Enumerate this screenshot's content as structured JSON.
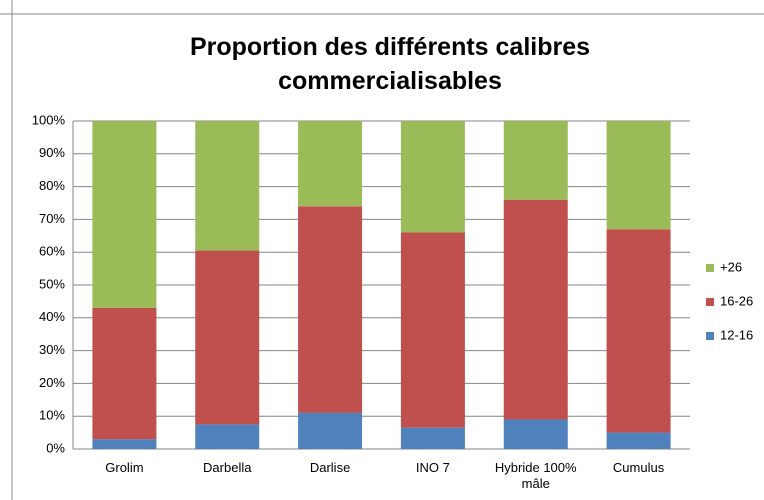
{
  "chart_data": {
    "type": "stacked_bar",
    "title": "Proportion des différents calibres commercialisables",
    "categories": [
      "Grolim",
      "Darbella",
      "Darlise",
      "INO 7",
      "Hybride 100% mâle",
      "Cumulus"
    ],
    "series": [
      {
        "name": "12-16",
        "color": "#4f81bd",
        "values": [
          3,
          7.5,
          11,
          6.5,
          9,
          5
        ]
      },
      {
        "name": "16-26",
        "color": "#c0504d",
        "values": [
          40,
          53,
          63,
          59.5,
          67,
          62
        ]
      },
      {
        "name": "+26",
        "color": "#9bbb59",
        "values": [
          57,
          39.5,
          26,
          34,
          24,
          33
        ]
      }
    ],
    "ylim": [
      0,
      100
    ],
    "yticks": [
      {
        "value": 0,
        "label": "0%"
      },
      {
        "value": 10,
        "label": "10%"
      },
      {
        "value": 20,
        "label": "20%"
      },
      {
        "value": 30,
        "label": "30%"
      },
      {
        "value": 40,
        "label": "40%"
      },
      {
        "value": 50,
        "label": "50%"
      },
      {
        "value": 60,
        "label": "60%"
      },
      {
        "value": 70,
        "label": "70%"
      },
      {
        "value": 80,
        "label": "80%"
      },
      {
        "value": 90,
        "label": "90%"
      },
      {
        "value": 100,
        "label": "100%"
      }
    ],
    "grid": true,
    "legend": "right"
  }
}
